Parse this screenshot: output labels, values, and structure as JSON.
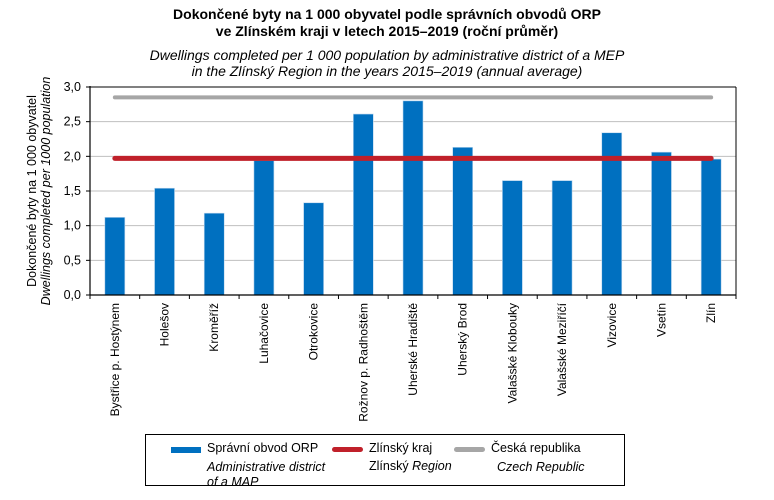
{
  "chart_data": {
    "type": "bar",
    "title": "Dokončené byty na 1 000 obyvatel podle správních obvodů ORP ve Zlínském kraji v letech 2015–2019 (roční průměr)",
    "title_lines": [
      "Dokončené byty na 1 000 obyvatel podle správních obvodů ORP",
      "ve Zlínském kraji v letech 2015–2019 (roční průměr)"
    ],
    "subtitle": "Dwellings completed per 1 000 population by administrative district of a MEP in the Zlínský Region in the years 2015–2019 (annual average)",
    "subtitle_lines": [
      "Dwellings completed per 1 000 population by administrative district of a MEP",
      "in the Zlínský Region in the years 2015–2019 (annual average)"
    ],
    "xlabel": "",
    "ylabel": "Dokončené byty na 1 000 obyvatel",
    "ylabel_en": "Dwellings completed per 1000 population",
    "ylim": [
      0,
      3.0
    ],
    "yticks": [
      "0,0",
      "0,5",
      "1,0",
      "1,5",
      "2,0",
      "2,5",
      "3,0"
    ],
    "ytick_values": [
      0,
      0.5,
      1.0,
      1.5,
      2.0,
      2.5,
      3.0
    ],
    "grid": true,
    "legend_position": "bottom",
    "categories": [
      "Bystřice p. Hostýnem",
      "Holešov",
      "Kroměříž",
      "Luhačovice",
      "Otrokovice",
      "Rožnov p. Radhoštěm",
      "Uherské Hradiště",
      "Uherský Brod",
      "Valašské Klobouky",
      "Valašské Meziříčí",
      "Vizovice",
      "Vsetín",
      "Zlín"
    ],
    "series": [
      {
        "name": "Správní obvod ORP",
        "name_en": "Administrative district of a MAP",
        "kind": "bar",
        "color": "#0070C0",
        "values": [
          1.12,
          1.54,
          1.18,
          1.94,
          1.33,
          2.61,
          2.8,
          2.13,
          1.65,
          1.65,
          2.34,
          2.06,
          1.96
        ]
      },
      {
        "name": "Zlínský kraj",
        "name_en": "Zlínský Region",
        "kind": "line",
        "color": "#C0202A",
        "values": [
          1.97,
          1.97,
          1.97,
          1.97,
          1.97,
          1.97,
          1.97,
          1.97,
          1.97,
          1.97,
          1.97,
          1.97,
          1.97
        ]
      },
      {
        "name": "Česká republika",
        "name_en": "Czech Republic",
        "kind": "line",
        "color": "#A6A6A6",
        "values": [
          2.85,
          2.85,
          2.85,
          2.85,
          2.85,
          2.85,
          2.85,
          2.85,
          2.85,
          2.85,
          2.85,
          2.85,
          2.85
        ]
      }
    ]
  },
  "legend": {
    "items": [
      {
        "cz": "Správní obvod ORP",
        "en_lines": [
          "Administrative district",
          "of a MAP"
        ],
        "color": "#0070C0",
        "kind": "bar"
      },
      {
        "cz": "Zlínský kraj",
        "en_prefix": "Zlínský ",
        "en_italic": "Region",
        "color": "#C0202A",
        "kind": "line"
      },
      {
        "cz": "Česká republika",
        "en_lines": [
          "Czech Republic"
        ],
        "color": "#A6A6A6",
        "kind": "line"
      }
    ]
  }
}
